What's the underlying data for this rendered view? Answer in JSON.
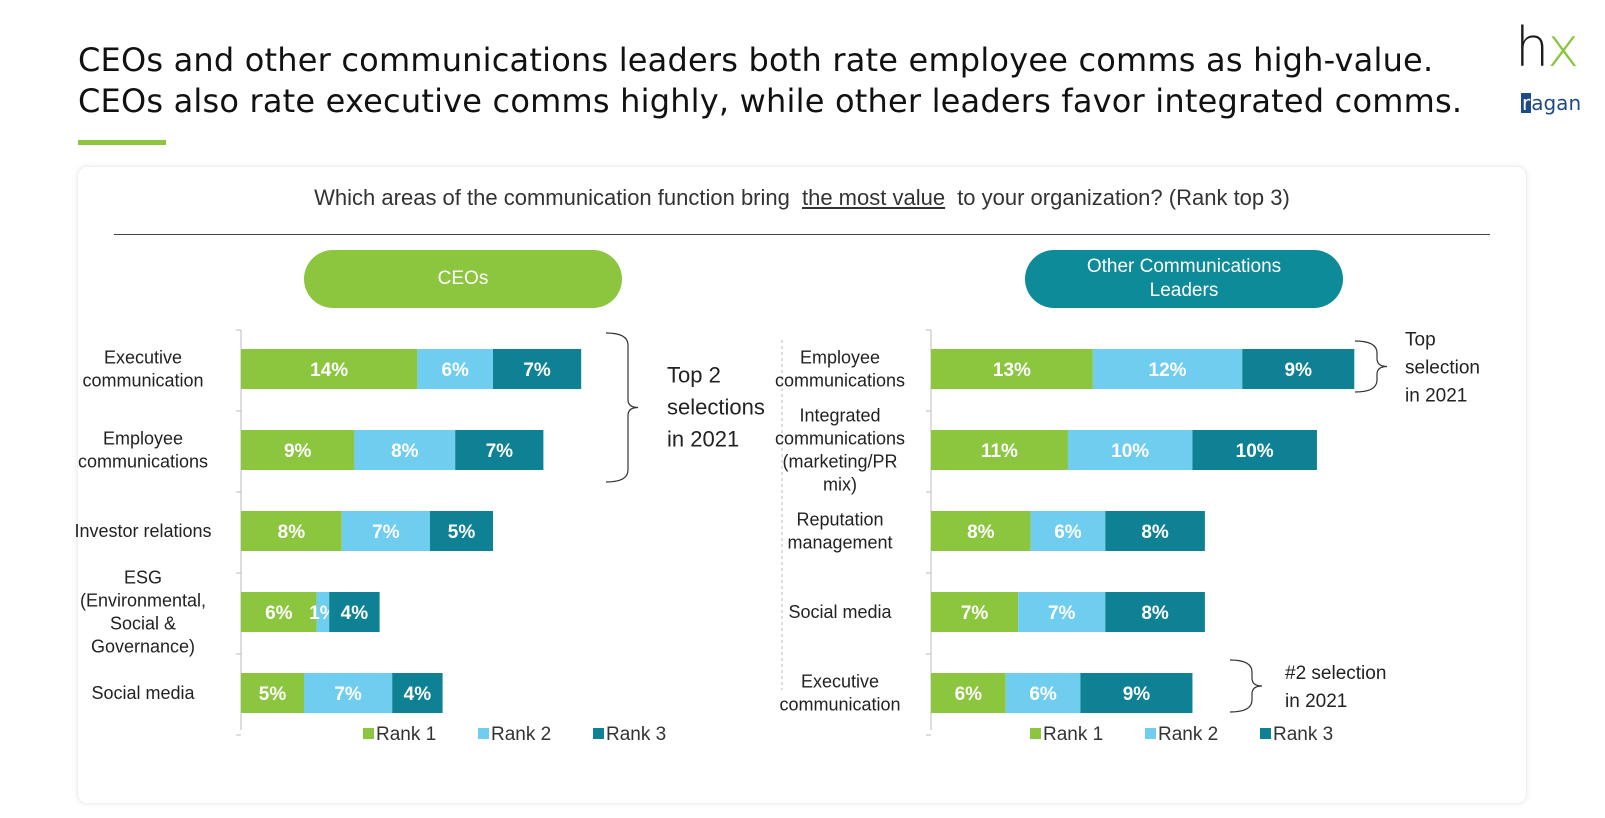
{
  "title_lines": [
    "CEOs and other communications leaders both rate employee comms as high-value.",
    "CEOs also rate executive comms highly, while other leaders favor integrated comms."
  ],
  "logo": {
    "brand": "hx",
    "sub_brand_initial": "r",
    "sub_brand_rest": "agan"
  },
  "question": {
    "prefix": "Which areas of the communication function bring",
    "highlight": "the most value",
    "suffix": "to your organization? (Rank top 3)"
  },
  "colors": {
    "rank1": "#8cc63f",
    "rank2": "#6fcdf0",
    "rank3": "#0e8294",
    "ceo_pill": "#8cc63f",
    "other_pill": "#0e8b99",
    "accent": "#8cc63f"
  },
  "panels": {
    "ceo": {
      "pill_label": "CEOs"
    },
    "other": {
      "pill_label_lines": [
        "Other Communications",
        "Leaders"
      ]
    }
  },
  "chart_data": [
    {
      "type": "bar",
      "orientation": "horizontal-stacked",
      "title": "CEOs",
      "categories": [
        [
          "Executive",
          "communication"
        ],
        [
          "Employee",
          "communications"
        ],
        [
          "Investor relations"
        ],
        [
          "ESG",
          "(Environmental,",
          "Social &",
          "Governance)"
        ],
        [
          "Social media"
        ]
      ],
      "series": [
        {
          "name": "Rank 1",
          "values": [
            14,
            9,
            8,
            6,
            5
          ]
        },
        {
          "name": "Rank 2",
          "values": [
            6,
            8,
            7,
            1,
            7
          ]
        },
        {
          "name": "Rank 3",
          "values": [
            7,
            7,
            5,
            4,
            4
          ]
        }
      ],
      "value_suffix": "%",
      "legend": [
        "Rank 1",
        "Rank 2",
        "Rank 3"
      ],
      "legend_position": "bottom",
      "annotations": [
        {
          "text_lines": [
            "Top 2",
            "selections",
            "in 2021"
          ],
          "covers": [
            0,
            1
          ]
        }
      ],
      "xlim": [
        0,
        30
      ]
    },
    {
      "type": "bar",
      "orientation": "horizontal-stacked",
      "title": "Other Communications Leaders",
      "categories": [
        [
          "Employee",
          "communications"
        ],
        [
          "Integrated",
          "communications",
          "(marketing/PR",
          "mix)"
        ],
        [
          "Reputation",
          "management"
        ],
        [
          "Social media"
        ],
        [
          "Executive",
          "communication"
        ]
      ],
      "series": [
        {
          "name": "Rank 1",
          "values": [
            13,
            11,
            8,
            7,
            6
          ]
        },
        {
          "name": "Rank 2",
          "values": [
            12,
            10,
            6,
            7,
            6
          ]
        },
        {
          "name": "Rank 3",
          "values": [
            9,
            10,
            8,
            8,
            9
          ]
        }
      ],
      "value_suffix": "%",
      "legend": [
        "Rank 1",
        "Rank 2",
        "Rank 3"
      ],
      "legend_position": "bottom",
      "annotations": [
        {
          "text_lines": [
            "Top",
            "selection",
            "in 2021"
          ],
          "covers": [
            0
          ]
        },
        {
          "text_lines": [
            "#2 selection",
            "in 2021"
          ],
          "covers": [
            4
          ]
        }
      ],
      "xlim": [
        0,
        30
      ]
    }
  ]
}
